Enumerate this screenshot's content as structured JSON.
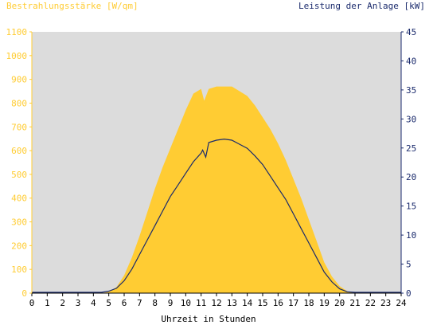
{
  "colors": {
    "plot_background": "#dcdcdc",
    "irradiance_fill": "#ffcc33",
    "power_line": "#1a2a6c",
    "left_axis": "#ffcc33",
    "right_axis": "#1a2a6c",
    "text_dark": "#000000"
  },
  "chart_data": {
    "type": "area",
    "left_axis_title": "Bestrahlungsstärke [W/qm]",
    "right_axis_title": "Leistung der Anlage [kW]",
    "xlabel": "Uhrzeit in Stunden",
    "xlim": [
      0,
      24
    ],
    "ylim_left": [
      0,
      1100
    ],
    "ylim_right": [
      0,
      45
    ],
    "x_ticks": [
      "0",
      "1",
      "2",
      "3",
      "4",
      "5",
      "6",
      "7",
      "8",
      "9",
      "10",
      "11",
      "12",
      "13",
      "14",
      "15",
      "16",
      "17",
      "18",
      "19",
      "20",
      "21",
      "22",
      "23",
      "24"
    ],
    "y_left_ticks": [
      "0",
      "100",
      "200",
      "300",
      "400",
      "500",
      "600",
      "700",
      "800",
      "900",
      "1000",
      "1100"
    ],
    "y_right_ticks": [
      "0",
      "5",
      "10",
      "15",
      "20",
      "25",
      "30",
      "35",
      "40",
      "45"
    ],
    "grid": false,
    "series": [
      {
        "name": "Bestrahlungsstärke",
        "axis": "left",
        "style": "area",
        "x": [
          0,
          4.5,
          5,
          5.5,
          6,
          6.5,
          7,
          7.5,
          8,
          8.5,
          9,
          9.5,
          10,
          10.5,
          11,
          11.2,
          11.5,
          12,
          12.5,
          13,
          13.5,
          14,
          14.5,
          15,
          15.5,
          16,
          16.5,
          17,
          17.5,
          18,
          18.5,
          19,
          19.5,
          20,
          20.5,
          21,
          24
        ],
        "y": [
          0,
          0,
          5,
          25,
          75,
          150,
          240,
          340,
          440,
          530,
          610,
          690,
          770,
          840,
          860,
          810,
          860,
          870,
          870,
          870,
          850,
          830,
          790,
          740,
          690,
          630,
          560,
          480,
          400,
          310,
          220,
          130,
          70,
          30,
          8,
          0,
          0
        ]
      },
      {
        "name": "Leistung der Anlage",
        "axis": "right",
        "style": "line",
        "x": [
          0,
          4.5,
          5,
          5.5,
          6,
          6.5,
          7,
          7.5,
          8,
          8.5,
          9,
          9.5,
          10,
          10.5,
          11,
          11.1,
          11.3,
          11.5,
          12,
          12.5,
          13,
          13.5,
          14,
          14.5,
          15,
          15.5,
          16,
          16.5,
          17,
          17.5,
          18,
          18.5,
          19,
          19.5,
          20,
          20.5,
          21,
          24
        ],
        "y": [
          0,
          0,
          0.2,
          0.7,
          2,
          4,
          6.5,
          9,
          11.5,
          14,
          16.5,
          18.5,
          20.5,
          22.5,
          24,
          24.5,
          23.3,
          25.8,
          26.2,
          26.4,
          26.2,
          25.5,
          24.8,
          23.5,
          22,
          20,
          18,
          16,
          13.5,
          11,
          8.5,
          6,
          3.5,
          1.8,
          0.6,
          0.1,
          0,
          0
        ]
      }
    ]
  }
}
